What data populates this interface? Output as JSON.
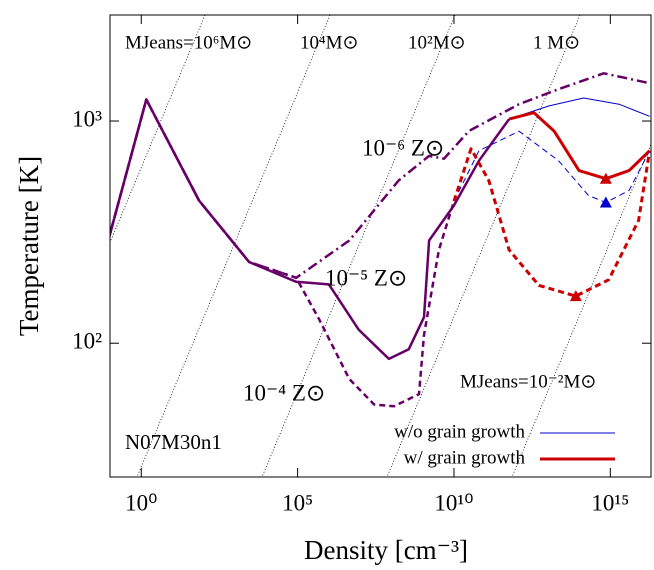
{
  "chart_data": {
    "type": "line",
    "x_label": "Density [cm⁻³]",
    "y_label": "Temperature [K]",
    "xscale": "log",
    "yscale": "log",
    "xlim": [
      0.1,
      2e+16
    ],
    "ylim": [
      25,
      3000
    ],
    "xticks": [
      {
        "value": 1,
        "label": "10⁰"
      },
      {
        "value": 100000,
        "label": "10⁵"
      },
      {
        "value": 10000000000,
        "label": "10¹⁰"
      },
      {
        "value": 1000000000000000,
        "label": "10¹⁵"
      }
    ],
    "yticks": [
      {
        "value": 100,
        "label": "10²"
      },
      {
        "value": 1000,
        "label": "10³"
      }
    ],
    "annotations": [
      "MJeans=10⁶M⊙",
      "10⁴M⊙",
      "10²M⊙",
      "1 M⊙",
      "10⁻⁶ Z⊙",
      "10⁻⁵ Z⊙",
      "10⁻⁴ Z⊙",
      "MJeans=10⁻²M⊙",
      "N07M30n1"
    ],
    "series": [
      {
        "color": "#660066",
        "style": "dashdot",
        "width": 2.5,
        "x": [
          0.095,
          1.45,
          70,
          2800,
          90000,
          4500000,
          170000000,
          1600000000,
          4800000000,
          30000000000,
          1200000000000,
          22000000000000,
          620000000000000,
          18000000000000000
        ],
        "values": [
          302,
          1250,
          439,
          232,
          197,
          290,
          540,
          697,
          677,
          902,
          1190,
          1390,
          1640,
          1480
        ]
      },
      {
        "color": "#660066",
        "style": "solid",
        "width": 2.5,
        "x": [
          0.095,
          1.45,
          70,
          2800,
          90000,
          1000000,
          9000000,
          83000000,
          360000000,
          1100000000,
          1600000000,
          10000000000,
          63000000000,
          580000000000
        ],
        "values": [
          302,
          1250,
          439,
          232,
          189,
          184,
          115,
          85,
          94,
          131,
          290,
          417,
          663,
          1020
        ]
      },
      {
        "name": "w/o grain growth",
        "color": "#0000cc",
        "style": "solid",
        "width": 1,
        "x": [
          580000000000,
          11000000000000,
          140000000000000,
          1900000000000000,
          18000000000000000
        ],
        "values": [
          1020,
          1170,
          1270,
          1190,
          1050
        ]
      },
      {
        "name": "w/ grain growth",
        "color": "#cc0000",
        "style": "solid",
        "width": 3,
        "x": [
          580000000000,
          3600000000000,
          16000000000000,
          100000000000000,
          720000000000000,
          4000000000000000,
          18000000000000000
        ],
        "values": [
          1020,
          1090,
          900,
          598,
          550,
          598,
          735
        ]
      },
      {
        "color": "#660066",
        "style": "dashed",
        "width": 2.5,
        "x": [
          0.095,
          1.45,
          70,
          2800,
          90000,
          490000,
          4500000,
          28000000,
          120000000,
          760000000,
          1100000000,
          3300000000,
          10000000000
        ],
        "values": [
          302,
          1250,
          439,
          232,
          197,
          128,
          69,
          53,
          52,
          59,
          109,
          263,
          436
        ]
      },
      {
        "color": "#0000cc",
        "style": "dashed",
        "width": 1,
        "x": [
          10000000000,
          63000000000,
          1200000000000,
          22000000000000,
          200000000000000,
          720000000000000,
          4000000000000000,
          18000000000000000
        ],
        "values": [
          436,
          735,
          900,
          663,
          462,
          430,
          487,
          735
        ]
      },
      {
        "color": "#cc0000",
        "style": "dashed",
        "width": 3,
        "x": [
          10000000000,
          35000000000,
          130000000000,
          580000000000,
          5200000000000,
          79000000000000,
          890000000000000,
          8000000000000000,
          18000000000000000
        ],
        "values": [
          436,
          750,
          540,
          263,
          182,
          163,
          193,
          357,
          735
        ]
      },
      {
        "color": "#cc0000",
        "marker": "triangle",
        "x": [
          720000000000000,
          79000000000000
        ],
        "values": [
          550,
          163
        ]
      },
      {
        "color": "#0000cc",
        "marker": "triangle",
        "x": [
          720000000000000
        ],
        "values": [
          430
        ]
      }
    ]
  }
}
